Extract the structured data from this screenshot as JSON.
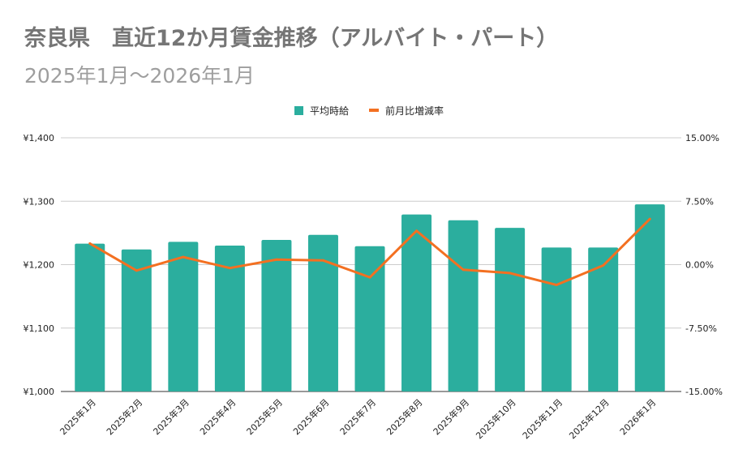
{
  "chart_data": {
    "type": "bar+line",
    "title": "奈良県　直近12か月賃金推移（アルバイト・パート）",
    "subtitle": "2025年1月～2026年1月",
    "categories": [
      "2025年1月",
      "2025年2月",
      "2025年3月",
      "2025年4月",
      "2025年5月",
      "2025年6月",
      "2025年7月",
      "2025年8月",
      "2025年9月",
      "2025年10月",
      "2025年11月",
      "2025年12月",
      "2026年1月"
    ],
    "series": [
      {
        "name": "平均時給",
        "type": "bar",
        "axis": "left",
        "color": "#2bae9e",
        "values": [
          1233,
          1224,
          1236,
          1230,
          1239,
          1247,
          1229,
          1279,
          1270,
          1258,
          1227,
          1227,
          1295
        ]
      },
      {
        "name": "前月比増減率",
        "type": "line",
        "axis": "right",
        "color": "#f37021",
        "values": [
          2.5,
          -0.7,
          0.9,
          -0.4,
          0.6,
          0.5,
          -1.5,
          4.0,
          -0.6,
          -1.0,
          -2.4,
          -0.1,
          5.4
        ]
      }
    ],
    "left_axis": {
      "ylim": [
        1000,
        1400
      ],
      "ticks": [
        1000,
        1100,
        1200,
        1300,
        1400
      ],
      "tick_labels": [
        "¥1,000",
        "¥1,100",
        "¥1,200",
        "¥1,300",
        "¥1,400"
      ]
    },
    "right_axis": {
      "ylim": [
        -15,
        15
      ],
      "ticks": [
        -15,
        -7.5,
        0,
        7.5,
        15
      ],
      "tick_labels": [
        "-15.00%",
        "-7.50%",
        "0.00%",
        "7.50%",
        "15.00%"
      ]
    },
    "grid": true,
    "legend": "top-center"
  }
}
